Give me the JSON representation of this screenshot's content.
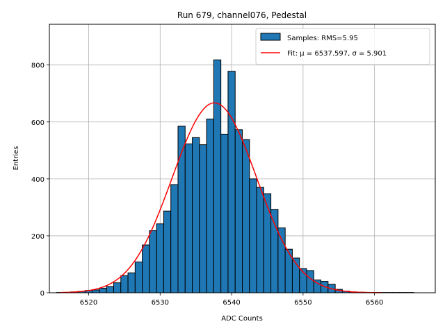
{
  "chart_data": {
    "type": "bar",
    "title": "Run 679, channel076, Pedestal",
    "xlabel": "ADC Counts",
    "ylabel": "Entries",
    "xlim": [
      6514.5,
      6568.5
    ],
    "ylim": [
      0,
      943
    ],
    "xticks": [
      6520,
      6530,
      6540,
      6550,
      6560
    ],
    "yticks": [
      0,
      200,
      400,
      600,
      800
    ],
    "grid": true,
    "legend_position": "top-right",
    "bin_width": 1,
    "bins": [
      {
        "x": 6516,
        "y": 1
      },
      {
        "x": 6517,
        "y": 1
      },
      {
        "x": 6518,
        "y": 3
      },
      {
        "x": 6519,
        "y": 5
      },
      {
        "x": 6520,
        "y": 8
      },
      {
        "x": 6521,
        "y": 10
      },
      {
        "x": 6522,
        "y": 16
      },
      {
        "x": 6523,
        "y": 22
      },
      {
        "x": 6524,
        "y": 35
      },
      {
        "x": 6525,
        "y": 60
      },
      {
        "x": 6526,
        "y": 70
      },
      {
        "x": 6527,
        "y": 108
      },
      {
        "x": 6528,
        "y": 168
      },
      {
        "x": 6529,
        "y": 218
      },
      {
        "x": 6530,
        "y": 242
      },
      {
        "x": 6531,
        "y": 287
      },
      {
        "x": 6532,
        "y": 380
      },
      {
        "x": 6533,
        "y": 585
      },
      {
        "x": 6534,
        "y": 523
      },
      {
        "x": 6535,
        "y": 545
      },
      {
        "x": 6536,
        "y": 520
      },
      {
        "x": 6537,
        "y": 610
      },
      {
        "x": 6538,
        "y": 818
      },
      {
        "x": 6539,
        "y": 557
      },
      {
        "x": 6540,
        "y": 778
      },
      {
        "x": 6541,
        "y": 573
      },
      {
        "x": 6542,
        "y": 538
      },
      {
        "x": 6543,
        "y": 400
      },
      {
        "x": 6544,
        "y": 370
      },
      {
        "x": 6545,
        "y": 348
      },
      {
        "x": 6546,
        "y": 293
      },
      {
        "x": 6547,
        "y": 228
      },
      {
        "x": 6548,
        "y": 153
      },
      {
        "x": 6549,
        "y": 122
      },
      {
        "x": 6550,
        "y": 85
      },
      {
        "x": 6551,
        "y": 78
      },
      {
        "x": 6552,
        "y": 45
      },
      {
        "x": 6553,
        "y": 40
      },
      {
        "x": 6554,
        "y": 30
      },
      {
        "x": 6555,
        "y": 12
      },
      {
        "x": 6556,
        "y": 6
      },
      {
        "x": 6557,
        "y": 3
      },
      {
        "x": 6558,
        "y": 2
      },
      {
        "x": 6559,
        "y": 1
      },
      {
        "x": 6560,
        "y": 1
      },
      {
        "x": 6561,
        "y": 1
      },
      {
        "x": 6562,
        "y": 1
      },
      {
        "x": 6563,
        "y": 1
      },
      {
        "x": 6564,
        "y": 1
      },
      {
        "x": 6565,
        "y": 1
      }
    ],
    "fit": {
      "mu": 6537.597,
      "sigma": 5.901,
      "amplitude": 667,
      "x_range": [
        6516,
        6561
      ]
    },
    "series": [
      {
        "name": "Samples: RMS=5.95",
        "type": "histogram",
        "color": "#1f77b4",
        "edgecolor": "#000000"
      },
      {
        "name": "Fit: μ = 6537.597, σ = 5.901",
        "type": "line",
        "color": "#ff0000"
      }
    ]
  }
}
